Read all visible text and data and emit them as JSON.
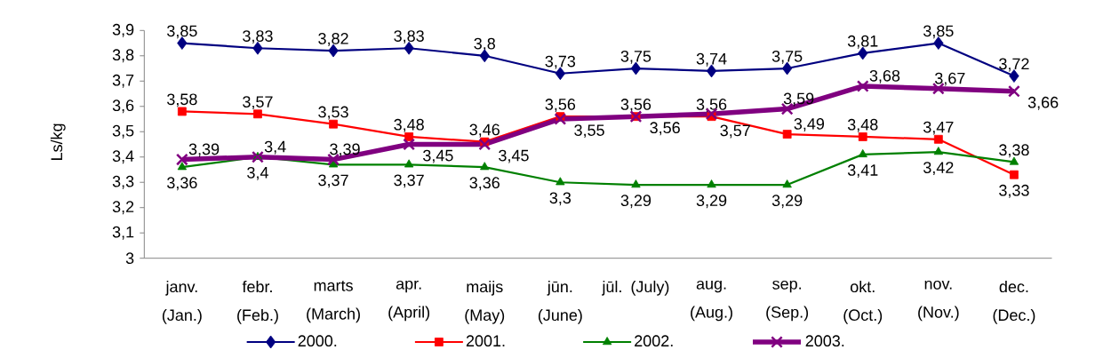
{
  "chart_data": {
    "type": "line",
    "ylabel": "Ls/kg",
    "categories": [
      "janv. (Jan.)",
      "febr. (Feb.)",
      "marts (March)",
      "apr. (April)",
      "maijs (May)",
      "jūn. (June)",
      "jūl. (July)",
      "aug. (Aug.)",
      "sep. (Sep.)",
      "okt. (Oct.)",
      "nov. (Nov.)",
      "dec. (Dec.)"
    ],
    "series": [
      {
        "name": "2000.",
        "color": "#000080",
        "marker": "diamond",
        "values": [
          3.85,
          3.83,
          3.82,
          3.83,
          3.8,
          3.73,
          3.75,
          3.74,
          3.75,
          3.81,
          3.85,
          3.72
        ],
        "value_labels": [
          "3,85",
          "3,83",
          "3,82",
          "3,83",
          "3,8",
          "3,73",
          "3,75",
          "3,74",
          "3,75",
          "3,81",
          "3,85",
          "3,72"
        ]
      },
      {
        "name": "2001.",
        "color": "#ff0000",
        "marker": "square",
        "values": [
          3.58,
          3.57,
          3.53,
          3.48,
          3.46,
          3.56,
          3.56,
          3.56,
          3.49,
          3.48,
          3.47,
          3.33
        ],
        "value_labels": [
          "3,58",
          "3,57",
          "3,53",
          "3,48",
          "3,46",
          "3,56",
          "3,56",
          "3,56",
          "3,49",
          "3,48",
          "3,47",
          "3,33"
        ]
      },
      {
        "name": "2002.",
        "color": "#008000",
        "marker": "triangle",
        "values": [
          3.36,
          3.4,
          3.37,
          3.37,
          3.36,
          3.3,
          3.29,
          3.29,
          3.29,
          3.41,
          3.42,
          3.38
        ],
        "value_labels": [
          "3,36",
          "3,4",
          "3,37",
          "3,37",
          "3,36",
          "3,3",
          "3,29",
          "3,29",
          "3,29",
          "3,41",
          "3,42",
          "3,38"
        ]
      },
      {
        "name": "2003.",
        "color": "#800080",
        "marker": "cross",
        "values": [
          3.39,
          3.4,
          3.39,
          3.45,
          3.45,
          3.55,
          3.56,
          3.57,
          3.59,
          3.68,
          3.67,
          3.66
        ],
        "value_labels": [
          "3,39",
          "3,4",
          "3,39",
          "3,45",
          "3,45",
          "3,55",
          "3,56",
          "3,57",
          "3,59",
          "3,68",
          "3,67",
          "3,66"
        ]
      }
    ],
    "ylim": [
      3,
      3.9
    ],
    "yticks": [
      3,
      {
        "value": 3.1,
        "label": "3,1"
      },
      {
        "value": 3.2,
        "label": "3,2"
      },
      {
        "value": 3.3,
        "label": "3,3"
      },
      {
        "value": 3.4,
        "label": "3,4"
      },
      {
        "value": 3.5,
        "label": "3,5"
      },
      {
        "value": 3.6,
        "label": "3,6"
      },
      {
        "value": 3.7,
        "label": "3,7"
      },
      {
        "value": 3.8,
        "label": "3,8"
      },
      {
        "value": 3.9,
        "label": "3,9"
      }
    ],
    "legend": "bottom"
  }
}
